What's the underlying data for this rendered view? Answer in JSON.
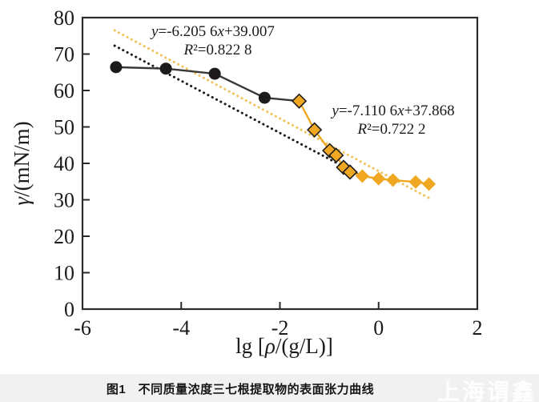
{
  "caption": "图1　不同质量浓度三七根提取物的表面张力曲线",
  "watermark": "上海谓鑫",
  "chart_data": {
    "type": "line",
    "title": "",
    "xlabel": "lg [ρ/(g/L)]",
    "ylabel": "γ/(mN/m)",
    "xlim": [
      -6,
      2
    ],
    "ylim": [
      0,
      80
    ],
    "x_ticks": [
      "-6",
      "-4",
      "-2",
      "0",
      "2"
    ],
    "y_ticks": [
      "0",
      "10",
      "20",
      "30",
      "40",
      "50",
      "60",
      "70",
      "80"
    ],
    "grid": false,
    "legend": "none",
    "series": [
      {
        "name": "black-circle-series",
        "marker": "circle",
        "color": "#1c1a1a",
        "points": [
          [
            -5.32,
            66.4
          ],
          [
            -4.31,
            66.0
          ],
          [
            -3.32,
            64.6
          ],
          [
            -2.31,
            58.0
          ]
        ],
        "extend_line_to": [
          -1.61,
          57.1
        ]
      },
      {
        "name": "orange-diamond-series",
        "marker": "diamond",
        "color": "#F0A822",
        "points": [
          [
            -1.61,
            57.1
          ],
          [
            -1.3,
            49.2
          ],
          [
            -0.99,
            43.5
          ],
          [
            -0.86,
            42.2
          ],
          [
            -0.71,
            38.9
          ],
          [
            -0.58,
            37.6
          ],
          [
            -0.33,
            36.5
          ],
          [
            0.0,
            35.8
          ],
          [
            0.29,
            35.4
          ],
          [
            0.75,
            34.9
          ],
          [
            1.02,
            34.3
          ]
        ]
      }
    ],
    "trendlines": [
      {
        "equation": "y=-6.205 6x+39.007",
        "r2": "R²=0.822 8",
        "slope": -6.2056,
        "intercept": 39.007,
        "color": "#1c1a1a",
        "style": "dotted",
        "segment": [
          [
            -5.35,
            72.3
          ],
          [
            -0.4,
            36.9
          ]
        ]
      },
      {
        "equation": "y=-7.110 6x+37.868",
        "r2": "R²=0.722 2",
        "slope": -7.1106,
        "intercept": 37.868,
        "color": "#F1C35C",
        "style": "dotted",
        "segment": [
          [
            -5.35,
            76.5
          ],
          [
            1.02,
            30.5
          ]
        ]
      }
    ]
  }
}
